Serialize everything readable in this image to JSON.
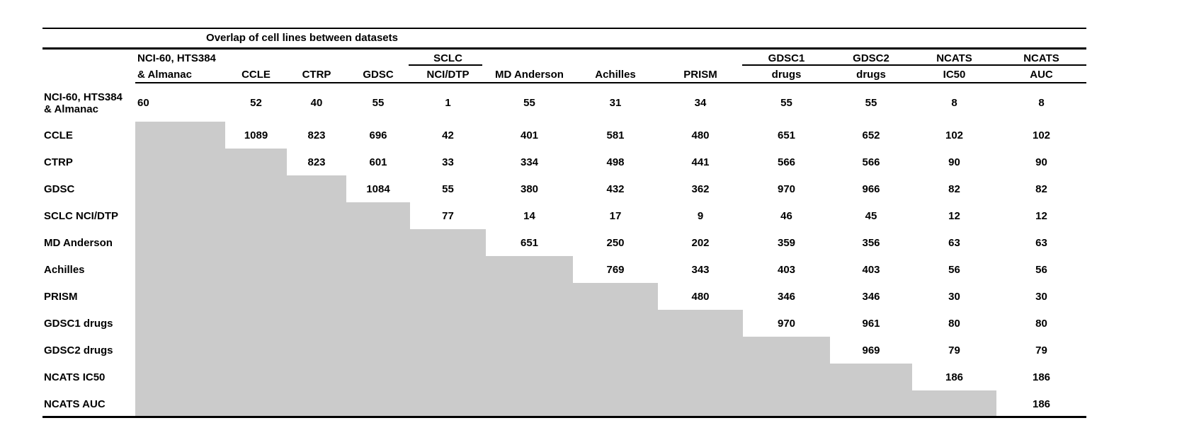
{
  "chart_data": {
    "type": "table",
    "title": "Overlap of cell lines between datasets",
    "column_headers": [
      {
        "line1": "NCI-60, HTS384",
        "line2": "& Almanac"
      },
      {
        "line1": "",
        "line2": "CCLE"
      },
      {
        "line1": "",
        "line2": "CTRP"
      },
      {
        "line1": "",
        "line2": "GDSC"
      },
      {
        "line1": "SCLC",
        "line2": "NCI/DTP"
      },
      {
        "line1": "",
        "line2": "MD Anderson"
      },
      {
        "line1": "",
        "line2": "Achilles"
      },
      {
        "line1": "",
        "line2": "PRISM"
      },
      {
        "line1": "GDSC1",
        "line2": "drugs"
      },
      {
        "line1": "GDSC2",
        "line2": "drugs"
      },
      {
        "line1": "NCATS",
        "line2": "IC50"
      },
      {
        "line1": "NCATS",
        "line2": "AUC"
      }
    ],
    "row_headers": [
      {
        "lines": [
          "NCI-60, HTS384",
          "& Almanac"
        ]
      },
      {
        "lines": [
          "CCLE"
        ]
      },
      {
        "lines": [
          "CTRP"
        ]
      },
      {
        "lines": [
          "GDSC"
        ]
      },
      {
        "lines": [
          "SCLC NCI/DTP"
        ]
      },
      {
        "lines": [
          "MD Anderson"
        ]
      },
      {
        "lines": [
          "Achilles"
        ]
      },
      {
        "lines": [
          "PRISM"
        ]
      },
      {
        "lines": [
          "GDSC1 drugs"
        ]
      },
      {
        "lines": [
          "GDSC2 drugs"
        ]
      },
      {
        "lines": [
          "NCATS IC50"
        ]
      },
      {
        "lines": [
          "NCATS AUC"
        ]
      }
    ],
    "matrix": [
      [
        60,
        52,
        40,
        55,
        1,
        55,
        31,
        34,
        55,
        55,
        8,
        8
      ],
      [
        null,
        1089,
        823,
        696,
        42,
        401,
        581,
        480,
        651,
        652,
        102,
        102
      ],
      [
        null,
        null,
        823,
        601,
        33,
        334,
        498,
        441,
        566,
        566,
        90,
        90
      ],
      [
        null,
        null,
        null,
        1084,
        55,
        380,
        432,
        362,
        970,
        966,
        82,
        82
      ],
      [
        null,
        null,
        null,
        null,
        77,
        14,
        17,
        9,
        46,
        45,
        12,
        12
      ],
      [
        null,
        null,
        null,
        null,
        null,
        651,
        250,
        202,
        359,
        356,
        63,
        63
      ],
      [
        null,
        null,
        null,
        null,
        null,
        null,
        769,
        343,
        403,
        403,
        56,
        56
      ],
      [
        null,
        null,
        null,
        null,
        null,
        null,
        null,
        480,
        346,
        346,
        30,
        30
      ],
      [
        null,
        null,
        null,
        null,
        null,
        null,
        null,
        null,
        970,
        961,
        80,
        80
      ],
      [
        null,
        null,
        null,
        null,
        null,
        null,
        null,
        null,
        null,
        969,
        79,
        79
      ],
      [
        null,
        null,
        null,
        null,
        null,
        null,
        null,
        null,
        null,
        null,
        186,
        186
      ],
      [
        null,
        null,
        null,
        null,
        null,
        null,
        null,
        null,
        null,
        null,
        null,
        186
      ]
    ],
    "lower_triangle": "shaded, empty"
  },
  "colors": {
    "background": "#ffffff",
    "text": "#000000",
    "rules": "#000000",
    "shaded_cells": "#cbcbcb"
  }
}
